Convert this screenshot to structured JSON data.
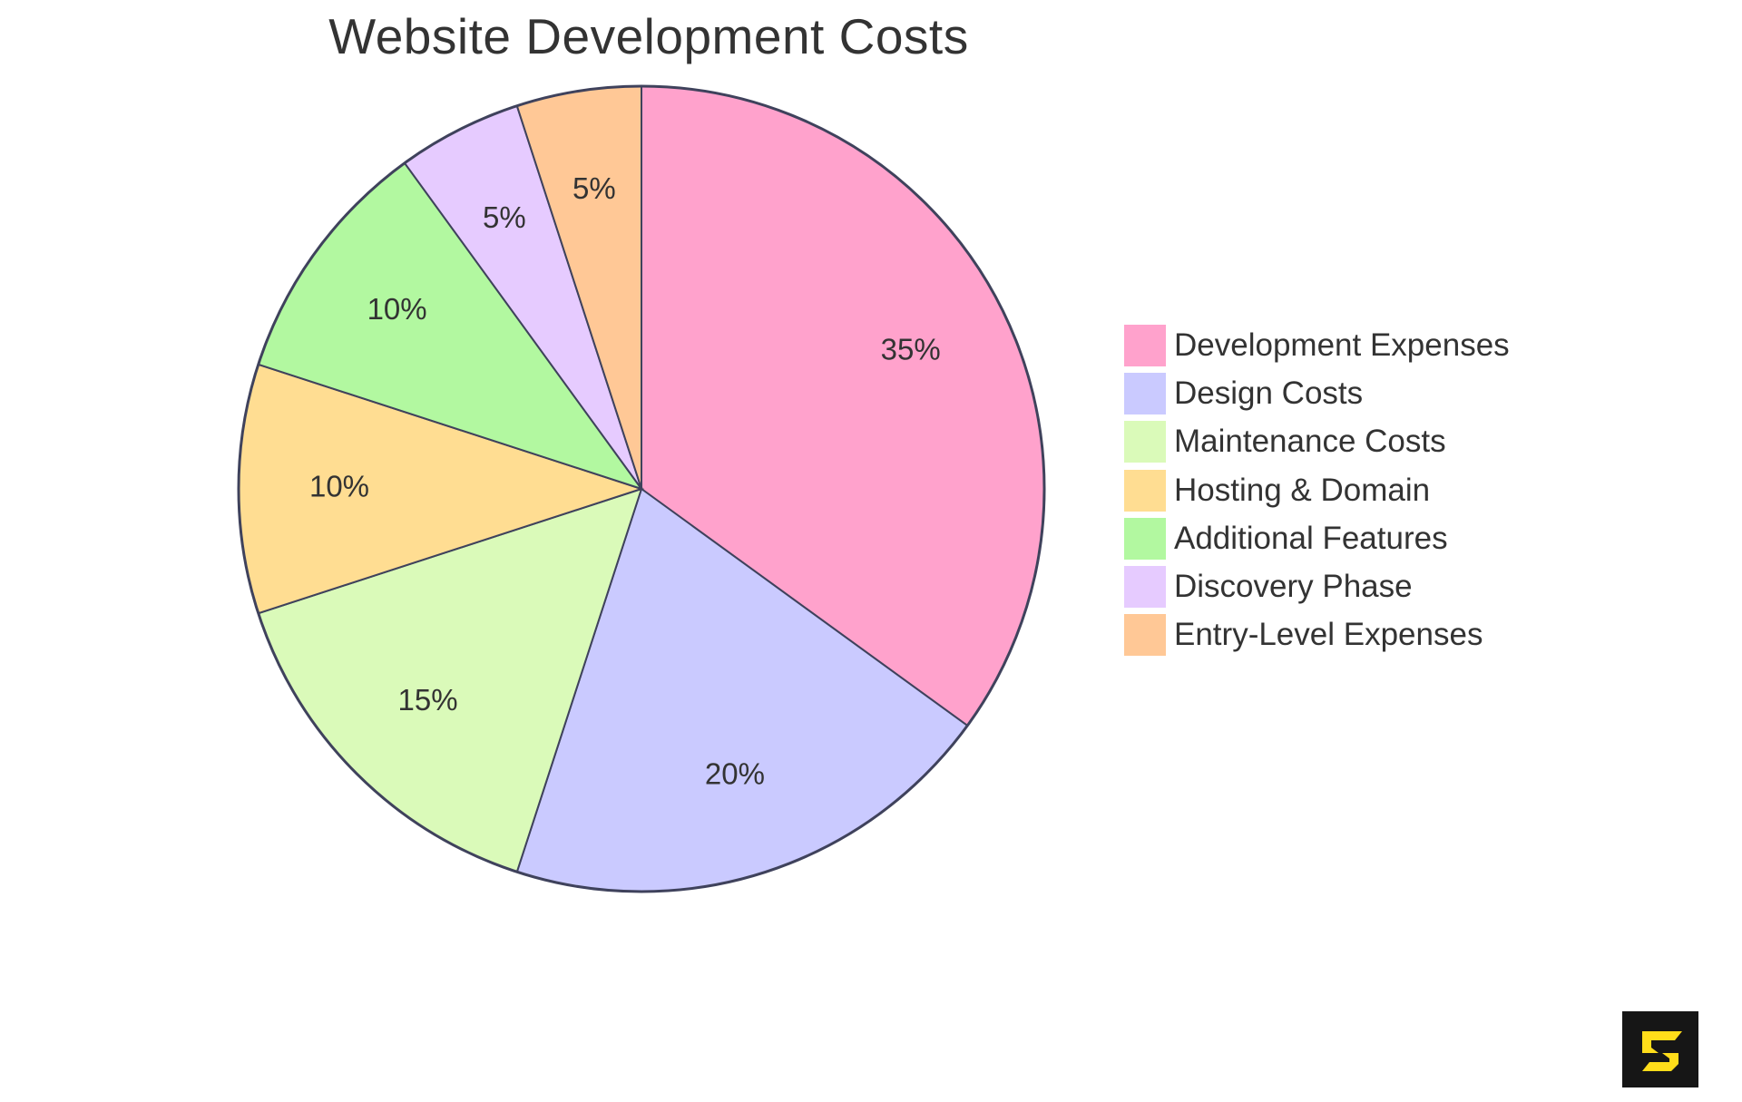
{
  "title": "Website Development Costs",
  "chart_data": {
    "type": "pie",
    "title": "Website Development Costs",
    "categories": [
      "Development Expenses",
      "Design Costs",
      "Maintenance Costs",
      "Hosting & Domain",
      "Additional Features",
      "Discovery Phase",
      "Entry-Level Expenses"
    ],
    "values": [
      35,
      20,
      15,
      10,
      10,
      5,
      5
    ],
    "labels": [
      "35%",
      "20%",
      "15%",
      "10%",
      "10%",
      "5%",
      "5%"
    ],
    "colors": [
      "#FFA2CC",
      "#CACAFF",
      "#DAFAB9",
      "#FFDD92",
      "#B2F8A0",
      "#E6CBFF",
      "#FFC896"
    ],
    "legend_position": "right",
    "start_angle": "12 o'clock, clockwise"
  },
  "legend": {
    "items": [
      {
        "label": "Development Expenses",
        "color": "#FFA2CC"
      },
      {
        "label": "Design Costs",
        "color": "#CACAFF"
      },
      {
        "label": "Maintenance Costs",
        "color": "#DAFAB9"
      },
      {
        "label": "Hosting & Domain",
        "color": "#FFDD92"
      },
      {
        "label": "Additional Features",
        "color": "#B2F8A0"
      },
      {
        "label": "Discovery Phase",
        "color": "#E6CBFF"
      },
      {
        "label": "Entry-Level Expenses",
        "color": "#FFC896"
      }
    ]
  },
  "logo": {
    "name": "brand-logo",
    "bg": "#161616",
    "fg": "#FFDD1A"
  }
}
